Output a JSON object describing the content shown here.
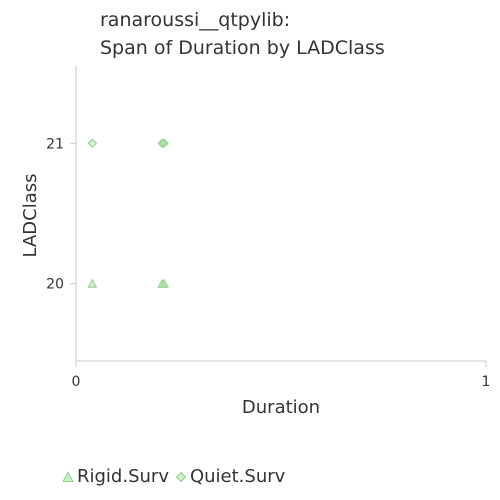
{
  "chart_data": {
    "type": "scatter",
    "title_line1": "ranaroussi__qtpylib:",
    "title_line2": "Span of Duration by LADClass",
    "xlabel": "Duration",
    "ylabel": "LADClass",
    "xlim": [
      0,
      1
    ],
    "ylim": [
      19.45,
      21.55
    ],
    "x_ticks": [
      "0",
      "1"
    ],
    "y_ticks": [
      "20",
      "21"
    ],
    "grid": false,
    "legend_position": "bottom",
    "series": [
      {
        "name": "Rigid.Surv",
        "marker": "triangle",
        "color": "#8fd18a",
        "points": [
          {
            "x": 0.04,
            "y": 20
          },
          {
            "x": 0.21,
            "y": 20
          },
          {
            "x": 0.215,
            "y": 20
          }
        ]
      },
      {
        "name": "Quiet.Surv",
        "marker": "diamond",
        "color": "#8fd18a",
        "points": [
          {
            "x": 0.04,
            "y": 21
          },
          {
            "x": 0.21,
            "y": 21
          },
          {
            "x": 0.215,
            "y": 21
          }
        ]
      }
    ]
  }
}
